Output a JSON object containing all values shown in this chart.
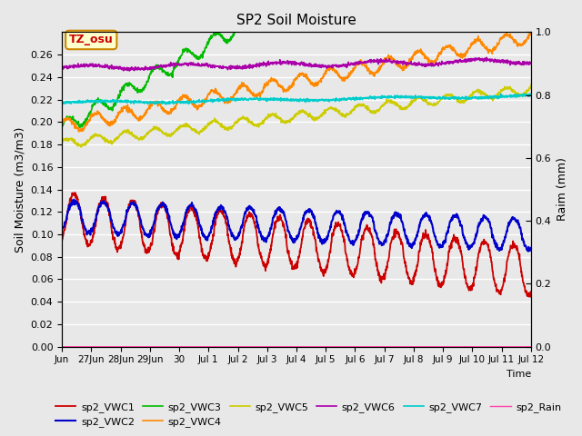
{
  "title": "SP2 Soil Moisture",
  "xlabel": "Time",
  "ylabel_left": "Soil Moisture (m3/m3)",
  "ylabel_right": "Raim (mm)",
  "ylim_left": [
    0.0,
    0.28
  ],
  "ylim_right": [
    0.0,
    1.0
  ],
  "xtick_labels": [
    "Jun",
    "27Jun",
    "28Jun",
    "29Jun",
    "30",
    "Jul 1",
    "Jul 2",
    "Jul 3",
    "Jul 4",
    "Jul 5",
    "Jul 6",
    "Jul 7",
    "Jul 8",
    "Jul 9",
    "Jul 10",
    "Jul 11",
    "Jul 12"
  ],
  "ytick_left": [
    0.0,
    0.02,
    0.04,
    0.06,
    0.08,
    0.1,
    0.12,
    0.14,
    0.16,
    0.18,
    0.2,
    0.22,
    0.24,
    0.26
  ],
  "ytick_right": [
    0.0,
    0.2,
    0.4,
    0.6,
    0.8,
    1.0
  ],
  "line_colors": {
    "VWC1": "#cc0000",
    "VWC2": "#0000cc",
    "VWC3": "#00bb00",
    "VWC4": "#ff8800",
    "VWC5": "#cccc00",
    "VWC6": "#aa00aa",
    "VWC7": "#00cccc",
    "Rain": "#ff44aa"
  },
  "annotation_text": "TZ_osu",
  "annotation_color": "#cc0000",
  "annotation_bg": "#ffffcc",
  "annotation_border": "#cc8800",
  "bg_color": "#e8e8e8",
  "n_points": 1600,
  "duration_days": 16.0
}
